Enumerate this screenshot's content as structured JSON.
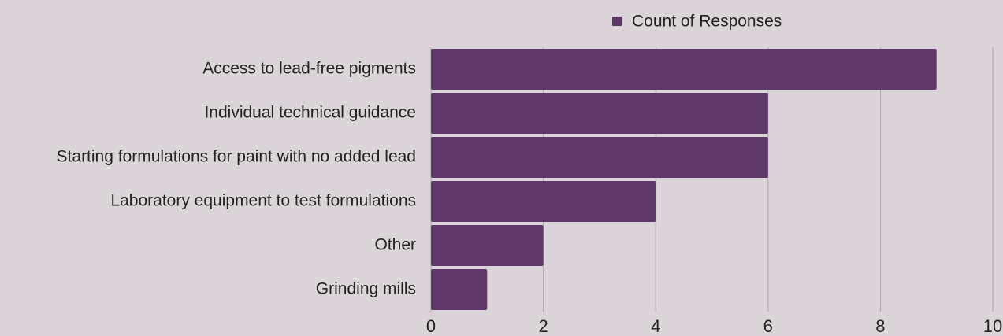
{
  "chart_data": {
    "type": "bar",
    "orientation": "horizontal",
    "categories": [
      "Access to lead-free pigments",
      "Individual technical guidance",
      "Starting formulations for paint with no added lead",
      "Laboratory equipment to test formulations",
      "Other",
      "Grinding mills"
    ],
    "series": [
      {
        "name": "Count of Responses",
        "color": "#5e3868",
        "values": [
          9,
          6,
          6,
          4,
          2,
          1
        ]
      }
    ],
    "xlim": [
      0,
      10
    ],
    "xticks": [
      0,
      2,
      4,
      6,
      8,
      10
    ],
    "grid": true,
    "legend": "top"
  }
}
